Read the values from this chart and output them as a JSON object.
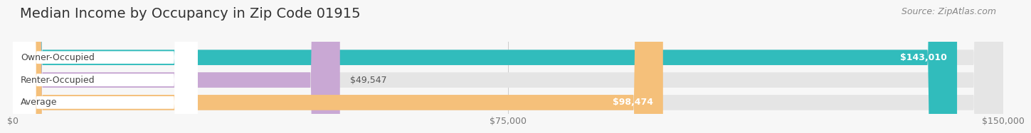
{
  "title": "Median Income by Occupancy in Zip Code 01915",
  "source": "Source: ZipAtlas.com",
  "categories": [
    "Owner-Occupied",
    "Renter-Occupied",
    "Average"
  ],
  "values": [
    143010,
    49547,
    98474
  ],
  "bar_colors": [
    "#31bcbc",
    "#c9a8d4",
    "#f5c07a"
  ],
  "value_labels": [
    "$143,010",
    "$49,547",
    "$98,474"
  ],
  "label_inside": [
    true,
    false,
    true
  ],
  "xlim": [
    0,
    150000
  ],
  "xtick_values": [
    0,
    75000,
    150000
  ],
  "xtick_labels": [
    "$0",
    "$75,000",
    "$150,000"
  ],
  "bg_color": "#f7f7f7",
  "bar_bg_color": "#e5e5e5",
  "title_fontsize": 14,
  "source_fontsize": 9,
  "bar_label_fontsize": 9,
  "category_fontsize": 9
}
